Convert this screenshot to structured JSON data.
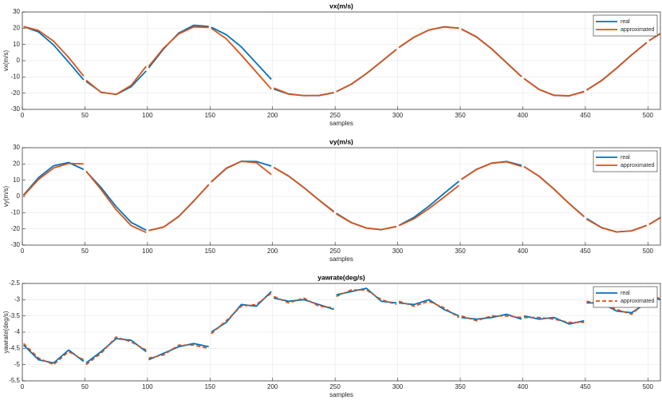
{
  "chart_data": [
    {
      "type": "line",
      "title": "vx(m/s)",
      "xlabel": "samples",
      "ylabel": "vx(m/s)",
      "x": [
        1,
        13,
        25,
        37,
        49,
        50,
        51,
        63,
        75,
        87,
        99,
        100,
        101,
        113,
        125,
        137,
        149,
        150,
        151,
        163,
        175,
        187,
        199,
        200,
        201,
        213,
        225,
        237,
        249,
        250,
        251,
        263,
        275,
        287,
        299,
        300,
        301,
        313,
        325,
        337,
        349,
        350,
        351,
        363,
        375,
        387,
        399,
        400,
        401,
        413,
        425,
        437,
        449,
        450,
        451,
        463,
        475,
        487,
        499,
        500,
        501,
        510
      ],
      "series": [
        {
          "name": "real",
          "color": "#0072bd",
          "line_style": "solid",
          "values": [
            21.0,
            17.7,
            9.7,
            -0.9,
            -11.8,
            null,
            -12.8,
            -19.4,
            -20.8,
            -16.0,
            -6.3,
            null,
            -4.4,
            7.3,
            17.0,
            21.8,
            21.1,
            null,
            20.6,
            16.0,
            8.5,
            -1.5,
            -11.5,
            null,
            -17.5,
            -20.6,
            -21.5,
            -21.5,
            -19.7,
            null,
            -19.1,
            -14.5,
            -8.0,
            -0.6,
            6.9,
            null,
            8.1,
            14.4,
            18.9,
            20.9,
            20.0,
            null,
            19.5,
            14.7,
            7.4,
            -1.2,
            -9.8,
            null,
            -11.0,
            -17.7,
            -21.4,
            -21.7,
            -18.9,
            null,
            -18.1,
            -12.2,
            -4.6,
            3.6,
            11.2,
            null,
            12.4,
            16.7
          ]
        },
        {
          "name": "approximated",
          "color": "#d95319",
          "line_style": "solid",
          "values": [
            21.0,
            18.6,
            12.0,
            2.0,
            -9.5,
            null,
            -12.0,
            -19.6,
            -20.7,
            -15.2,
            -3.5,
            null,
            -3.5,
            7.8,
            16.5,
            20.8,
            20.5,
            null,
            20.0,
            13.5,
            3.5,
            -7.0,
            -17.5,
            null,
            -16.8,
            -20.5,
            -21.5,
            -21.4,
            -19.6,
            null,
            -19.0,
            -14.4,
            -7.9,
            -0.5,
            7.0,
            null,
            8.2,
            14.5,
            18.9,
            20.8,
            20.0,
            null,
            19.4,
            14.6,
            7.3,
            -1.3,
            -9.9,
            null,
            -11.0,
            -17.7,
            -21.3,
            -21.6,
            -19.2,
            null,
            -18.2,
            -12.3,
            -4.7,
            3.5,
            11.1,
            null,
            12.3,
            16.7
          ]
        }
      ],
      "xlim": [
        0,
        510
      ],
      "xticks": [
        0,
        50,
        100,
        150,
        200,
        250,
        300,
        350,
        400,
        450,
        500
      ],
      "ylim": [
        -30,
        30
      ],
      "yticks": [
        -30,
        -20,
        -10,
        0,
        10,
        20,
        30
      ],
      "grid": true,
      "legend": "upper right"
    },
    {
      "type": "line",
      "title": "vy(m/s)",
      "xlabel": "samples",
      "ylabel": "vy(m/s)",
      "x": [
        1,
        13,
        25,
        37,
        49,
        50,
        51,
        63,
        75,
        87,
        99,
        100,
        101,
        113,
        125,
        137,
        149,
        150,
        151,
        163,
        175,
        187,
        199,
        200,
        201,
        213,
        225,
        237,
        249,
        250,
        251,
        263,
        275,
        287,
        299,
        300,
        301,
        313,
        325,
        337,
        349,
        350,
        351,
        363,
        375,
        387,
        399,
        400,
        401,
        413,
        425,
        437,
        449,
        450,
        451,
        463,
        475,
        487,
        499,
        500,
        501,
        510
      ],
      "series": [
        {
          "name": "real",
          "color": "#0072bd",
          "line_style": "solid",
          "values": [
            0.9,
            11.6,
            18.9,
            20.9,
            16.6,
            null,
            15.4,
            5.4,
            -6.3,
            -16.0,
            -20.8,
            null,
            -21.0,
            -18.9,
            -12.4,
            -2.9,
            7.3,
            null,
            8.9,
            17.2,
            21.6,
            21.5,
            18.7,
            null,
            17.9,
            12.5,
            5.5,
            -2.1,
            -9.3,
            null,
            -10.4,
            -16.1,
            -19.5,
            -20.5,
            -18.5,
            null,
            -17.9,
            -12.9,
            -6.0,
            1.8,
            9.4,
            null,
            10.6,
            16.7,
            20.5,
            21.5,
            19.1,
            null,
            18.4,
            12.5,
            4.5,
            -4.3,
            -12.4,
            null,
            -13.6,
            -19.2,
            -21.9,
            -21.2,
            -17.9,
            null,
            -17.2,
            -13.0
          ]
        },
        {
          "name": "approximated",
          "color": "#d95319",
          "line_style": "solid",
          "values": [
            0.5,
            10.5,
            17.5,
            20.3,
            20.0,
            null,
            15.5,
            4.2,
            -8.2,
            -18.0,
            -22.2,
            null,
            -21.0,
            -18.8,
            -12.3,
            -2.8,
            7.2,
            null,
            9.0,
            17.4,
            21.6,
            20.8,
            13.5,
            null,
            17.8,
            12.4,
            5.4,
            -2.2,
            -9.6,
            null,
            -10.8,
            -16.2,
            -19.5,
            -20.4,
            -18.6,
            null,
            -18.0,
            -13.8,
            -7.5,
            -0.5,
            6.8,
            null,
            10.5,
            16.6,
            20.4,
            21.3,
            18.5,
            null,
            18.4,
            12.4,
            4.4,
            -4.4,
            -12.6,
            null,
            -14.0,
            -19.3,
            -21.9,
            -21.2,
            -17.9,
            null,
            -17.3,
            -13.1
          ]
        }
      ],
      "xlim": [
        0,
        510
      ],
      "xticks": [
        0,
        50,
        100,
        150,
        200,
        250,
        300,
        350,
        400,
        450,
        500
      ],
      "ylim": [
        -30,
        30
      ],
      "yticks": [
        -30,
        -20,
        -10,
        0,
        10,
        20,
        30
      ],
      "grid": true,
      "legend": "upper right"
    },
    {
      "type": "line",
      "title": "yawrate(deg/s)",
      "xlabel": "samples",
      "ylabel": "yawrate(deg/s)",
      "x": [
        1,
        13,
        25,
        37,
        49,
        50,
        51,
        63,
        75,
        87,
        99,
        100,
        101,
        113,
        125,
        137,
        149,
        150,
        151,
        163,
        175,
        187,
        199,
        200,
        201,
        213,
        225,
        237,
        249,
        250,
        251,
        263,
        275,
        287,
        299,
        300,
        301,
        313,
        325,
        337,
        349,
        350,
        351,
        363,
        375,
        387,
        399,
        400,
        401,
        413,
        425,
        437,
        449,
        450,
        451,
        463,
        475,
        487,
        499,
        500,
        501,
        510
      ],
      "series": [
        {
          "name": "real",
          "color": "#0072bd",
          "line_style": "solid",
          "values": [
            -4.4,
            -4.85,
            -4.95,
            -4.55,
            -4.9,
            null,
            -4.95,
            -4.6,
            -4.2,
            -4.25,
            -4.6,
            null,
            -4.85,
            -4.65,
            -4.45,
            -4.35,
            -4.45,
            null,
            -4.0,
            -3.7,
            -3.15,
            -3.2,
            -2.75,
            null,
            -2.95,
            -3.05,
            -3.0,
            -3.15,
            -3.3,
            null,
            -2.85,
            -2.75,
            -2.65,
            -3.05,
            -3.1,
            null,
            -3.1,
            -3.15,
            -3.0,
            -3.3,
            -3.5,
            null,
            -3.55,
            -3.6,
            -3.55,
            -3.45,
            -3.6,
            null,
            -3.5,
            -3.6,
            -3.55,
            -3.75,
            -3.65,
            null,
            -3.1,
            -3.1,
            -3.35,
            -3.4,
            -3.1,
            null,
            -2.9,
            -3.0
          ]
        },
        {
          "name": "approximated",
          "color": "#d95319",
          "line_style": "dashed",
          "values": [
            -4.35,
            -4.8,
            -5.0,
            -4.6,
            -4.85,
            null,
            -5.0,
            -4.65,
            -4.15,
            -4.3,
            -4.55,
            null,
            -4.8,
            -4.7,
            -4.4,
            -4.4,
            -4.5,
            null,
            -4.05,
            -3.65,
            -3.2,
            -3.15,
            -2.8,
            null,
            -2.9,
            -3.1,
            -2.95,
            -3.2,
            -3.25,
            null,
            -2.9,
            -2.7,
            -2.7,
            -3.0,
            -3.15,
            null,
            -3.05,
            -3.2,
            -3.05,
            -3.25,
            -3.55,
            null,
            -3.5,
            -3.65,
            -3.5,
            -3.5,
            -3.55,
            null,
            -3.55,
            -3.55,
            -3.6,
            -3.7,
            -3.7,
            null,
            -3.05,
            -3.15,
            -3.3,
            -3.45,
            -3.05,
            null,
            -2.95,
            -2.95
          ]
        }
      ],
      "xlim": [
        0,
        510
      ],
      "xticks": [
        0,
        50,
        100,
        150,
        200,
        250,
        300,
        350,
        400,
        450,
        500
      ],
      "ylim": [
        -5.5,
        -2.5
      ],
      "yticks": [
        -5.5,
        -5,
        -4.5,
        -4,
        -3.5,
        -3,
        -2.5
      ],
      "grid": true,
      "legend": "upper right"
    }
  ]
}
